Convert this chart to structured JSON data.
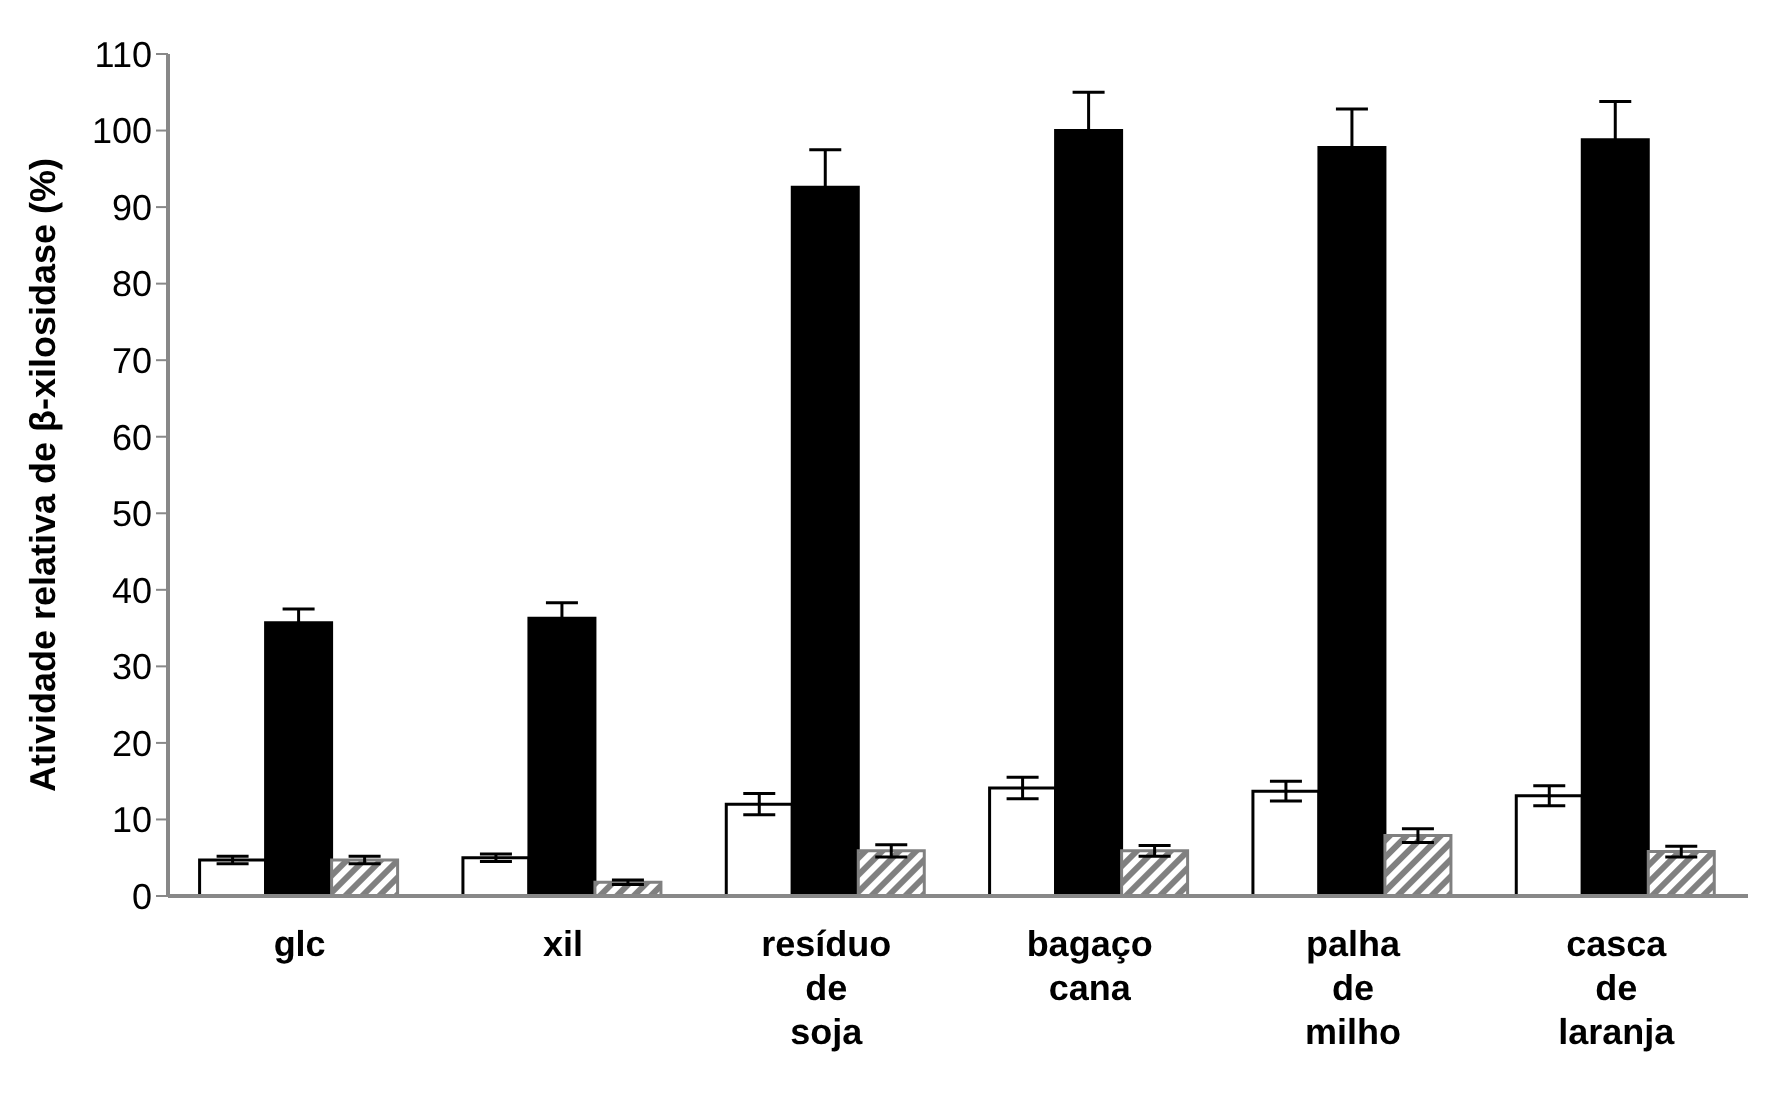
{
  "chart_data": {
    "type": "bar",
    "ylabel": "Atividade relativa de β-xilosidase (%)",
    "categories": [
      "glc",
      "xil",
      "resíduo de soja",
      "bagaço cana",
      "palha de milho",
      "casca de laranja"
    ],
    "series": [
      {
        "color": "#ffffff",
        "values": [
          4.7,
          5.0,
          12.0,
          14.1,
          13.7,
          13.1
        ],
        "errors": [
          0.5,
          0.5,
          1.4,
          1.4,
          1.3,
          1.3
        ]
      },
      {
        "color": "#000000",
        "values": [
          35.7,
          36.3,
          92.6,
          100,
          97.8,
          98.8
        ],
        "errors": [
          1.8,
          2,
          4.9,
          5,
          5,
          5
        ]
      },
      {
        "color": "#808080",
        "values": [
          4.7,
          1.8,
          5.9,
          5.9,
          7.9,
          5.8
        ],
        "errors": [
          0.5,
          0.3,
          0.8,
          0.7,
          0.9,
          0.7
        ]
      }
    ],
    "ylim": [
      0,
      110
    ],
    "yticks": [
      0,
      10,
      20,
      30,
      40,
      50,
      60,
      70,
      80,
      90,
      100,
      110
    ],
    "grid": false,
    "legend": false
  }
}
